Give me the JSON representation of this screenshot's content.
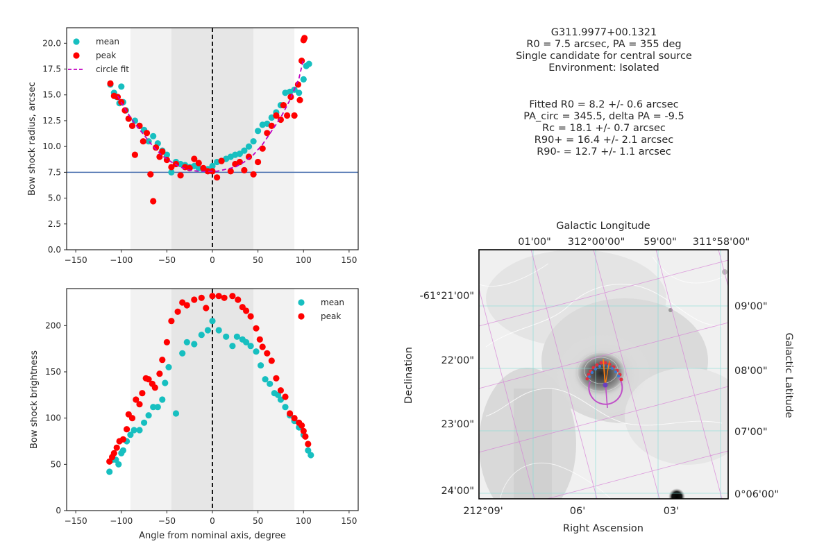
{
  "colors": {
    "mean": "#17bfc0",
    "peak": "#ff0000",
    "fit": "#c000c0",
    "r0_line": "#4c72b0",
    "band_inner": "#e6e6e6",
    "band_outer": "#f2f2f2"
  },
  "chart_data": [
    {
      "type": "scatter",
      "ylabel": "Bow shock radius, arcsec",
      "xlabel": "",
      "xlim": [
        -160,
        160
      ],
      "ylim": [
        0,
        21.5
      ],
      "xticks": [
        "−150",
        "−100",
        "−50",
        "0",
        "50",
        "100",
        "150"
      ],
      "xtick_values": [
        -150,
        -100,
        -50,
        0,
        50,
        100,
        150
      ],
      "yticks": [
        "0.0",
        "2.5",
        "5.0",
        "7.5",
        "10.0",
        "12.5",
        "15.0",
        "17.5",
        "20.0"
      ],
      "ytick_values": [
        0,
        2.5,
        5,
        7.5,
        10,
        12.5,
        15,
        17.5,
        20
      ],
      "bands": {
        "inner": [
          -45,
          45
        ],
        "outer": [
          -90,
          90
        ]
      },
      "hline": 7.5,
      "vline": 0,
      "legend": {
        "position": "top-left",
        "entries": [
          "mean",
          "peak",
          "circle fit"
        ]
      },
      "series": [
        {
          "name": "mean",
          "marker": "circle",
          "x": [
            -112,
            -108,
            -105,
            -102,
            -100,
            -98,
            -95,
            -92,
            -88,
            -85,
            -80,
            -75,
            -70,
            -65,
            -60,
            -55,
            -50,
            -45,
            -40,
            -35,
            -30,
            -25,
            -20,
            -15,
            -10,
            -5,
            0,
            5,
            10,
            15,
            20,
            25,
            30,
            35,
            40,
            45,
            50,
            55,
            60,
            65,
            70,
            75,
            80,
            85,
            90,
            95,
            100,
            103,
            106
          ],
          "y": [
            16.0,
            15.2,
            14.8,
            14.2,
            15.8,
            14.3,
            13.5,
            12.7,
            12.0,
            12.5,
            12.0,
            11.6,
            10.5,
            11.0,
            10.3,
            9.6,
            9.2,
            7.5,
            8.5,
            8.3,
            8.2,
            8.0,
            8.1,
            7.9,
            7.8,
            7.8,
            8.1,
            8.5,
            8.6,
            8.8,
            9.0,
            9.2,
            9.3,
            9.6,
            10.0,
            10.5,
            11.5,
            12.1,
            12.2,
            12.8,
            13.3,
            14.0,
            15.2,
            15.3,
            15.5,
            15.2,
            16.5,
            17.8,
            18.0
          ]
        },
        {
          "name": "peak",
          "marker": "circle",
          "x": [
            -112,
            -108,
            -104,
            -100,
            -96,
            -92,
            -88,
            -85,
            -80,
            -76,
            -72,
            -68,
            -65,
            -62,
            -58,
            -55,
            -50,
            -45,
            -40,
            -35,
            -30,
            -25,
            -20,
            -15,
            -10,
            -5,
            0,
            5,
            10,
            20,
            25,
            30,
            35,
            40,
            45,
            50,
            55,
            60,
            65,
            70,
            75,
            78,
            82,
            86,
            90,
            94,
            96,
            98,
            100,
            101
          ],
          "y": [
            16.1,
            14.9,
            14.8,
            14.3,
            13.5,
            12.7,
            12.0,
            9.2,
            12.0,
            10.5,
            11.3,
            7.3,
            4.7,
            9.9,
            9.0,
            9.5,
            8.7,
            8.0,
            8.3,
            7.2,
            8.0,
            7.9,
            8.8,
            8.4,
            7.9,
            7.6,
            7.6,
            7.0,
            8.6,
            7.6,
            8.3,
            8.5,
            7.7,
            9.0,
            7.3,
            8.5,
            9.8,
            11.3,
            12.0,
            13.0,
            12.6,
            14.0,
            13.0,
            14.8,
            13.0,
            16.0,
            14.5,
            18.3,
            20.3,
            20.5
          ]
        },
        {
          "name": "circle fit",
          "style": "dashed",
          "x": [
            -104,
            -95,
            -85,
            -75,
            -65,
            -55,
            -45,
            -35,
            -25,
            -15,
            -5,
            0,
            5,
            15,
            25,
            35,
            45,
            55,
            65,
            75,
            85,
            95,
            100
          ],
          "y": [
            14.9,
            13.5,
            12.2,
            11.1,
            10.0,
            9.1,
            8.5,
            8.0,
            7.7,
            7.6,
            7.6,
            7.6,
            7.6,
            7.8,
            8.0,
            8.5,
            9.2,
            10.2,
            11.5,
            12.8,
            14.5,
            16.6,
            18.5
          ]
        }
      ]
    },
    {
      "type": "scatter",
      "ylabel": "Bow shock brightness",
      "xlabel": "Angle from nominal axis, degree",
      "xlim": [
        -160,
        160
      ],
      "ylim": [
        0,
        240
      ],
      "xticks": [
        "−150",
        "−100",
        "−50",
        "0",
        "50",
        "100",
        "150"
      ],
      "xtick_values": [
        -150,
        -100,
        -50,
        0,
        50,
        100,
        150
      ],
      "yticks": [
        "0",
        "50",
        "100",
        "150",
        "200"
      ],
      "ytick_values": [
        0,
        50,
        100,
        150,
        200
      ],
      "bands": {
        "inner": [
          -45,
          45
        ],
        "outer": [
          -90,
          90
        ]
      },
      "vline": 0,
      "legend": {
        "position": "top-right",
        "entries": [
          "mean",
          "peak"
        ]
      },
      "series": [
        {
          "name": "mean",
          "marker": "circle",
          "x": [
            -113,
            -110,
            -106,
            -103,
            -100,
            -98,
            -94,
            -90,
            -86,
            -80,
            -75,
            -70,
            -65,
            -60,
            -55,
            -52,
            -48,
            -40,
            -33,
            -28,
            -20,
            -12,
            -5,
            0,
            7,
            15,
            22,
            27,
            33,
            37,
            42,
            48,
            53,
            58,
            63,
            68,
            72,
            75,
            80,
            85,
            90,
            95,
            100,
            105,
            108
          ],
          "y": [
            42,
            55,
            55,
            50,
            62,
            65,
            75,
            82,
            87,
            87,
            95,
            103,
            112,
            112,
            120,
            138,
            155,
            105,
            170,
            182,
            180,
            190,
            195,
            205,
            195,
            188,
            178,
            188,
            185,
            182,
            178,
            172,
            157,
            142,
            137,
            127,
            125,
            120,
            112,
            103,
            97,
            90,
            82,
            65,
            60
          ]
        },
        {
          "name": "peak",
          "marker": "circle",
          "x": [
            -113,
            -110,
            -108,
            -105,
            -102,
            -98,
            -94,
            -92,
            -88,
            -84,
            -80,
            -77,
            -73,
            -70,
            -66,
            -63,
            -58,
            -55,
            -50,
            -45,
            -38,
            -33,
            -28,
            -20,
            -12,
            -7,
            0,
            7,
            13,
            22,
            28,
            33,
            37,
            42,
            48,
            52,
            55,
            60,
            65,
            70,
            75,
            80,
            85,
            90,
            95,
            98,
            100,
            102,
            105
          ],
          "y": [
            53,
            58,
            62,
            68,
            75,
            77,
            88,
            104,
            100,
            120,
            115,
            127,
            143,
            142,
            137,
            133,
            148,
            163,
            182,
            205,
            215,
            225,
            222,
            228,
            230,
            219,
            232,
            232,
            230,
            232,
            228,
            220,
            216,
            210,
            197,
            185,
            177,
            170,
            162,
            143,
            130,
            123,
            105,
            100,
            95,
            92,
            86,
            80,
            72
          ]
        }
      ]
    }
  ],
  "info_lines_1": [
    "G311.9977+00.1321",
    "R0 = 7.5 arcsec, PA = 355 deg",
    "Single candidate for central source",
    "Environment: Isolated"
  ],
  "info_lines_2": [
    "Fitted R0 = 8.2 +/- 0.6 arcsec",
    "PA_circ = 345.5, delta PA = -9.5",
    "Rc = 18.1 +/- 0.7 arcsec",
    "R90+ = 16.4 +/- 2.1 arcsec",
    "R90- = 12.7 +/- 1.1 arcsec"
  ],
  "sky_map": {
    "top_axis_label": "Galactic Longitude",
    "top_ticks": [
      "01'00\"",
      "312°00'00\"",
      "59'00\"",
      "311°58'00\""
    ],
    "bottom_axis_label": "Right Ascension",
    "bottom_ticks": [
      "212°09'",
      "06'",
      "03'"
    ],
    "left_axis_label": "Declination",
    "left_ticks": [
      "-61°21'00\"",
      "22'00\"",
      "23'00\"",
      "24'00\""
    ],
    "right_axis_label": "Galactic Latitude",
    "right_ticks": [
      "09'00\"",
      "08'00\"",
      "07'00\"",
      "0°06'00\""
    ]
  }
}
